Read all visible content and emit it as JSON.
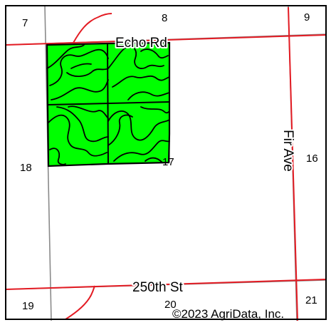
{
  "map": {
    "section_numbers": {
      "s7": "7",
      "s8": "8",
      "s9": "9",
      "s16": "16",
      "s17": "17",
      "s18": "18",
      "s19": "19",
      "s20": "20",
      "s21": "21"
    },
    "roads": {
      "echo_rd": "Echo Rd",
      "fir_ave": "Fir Ave",
      "250th_st": "250th St"
    },
    "copyright": "©2023 AgriData, Inc.",
    "colors": {
      "field_fill": "#00ff00",
      "road": "#e31b23",
      "section_line": "#808080",
      "contour": "#000000",
      "frame": "#000000"
    }
  }
}
